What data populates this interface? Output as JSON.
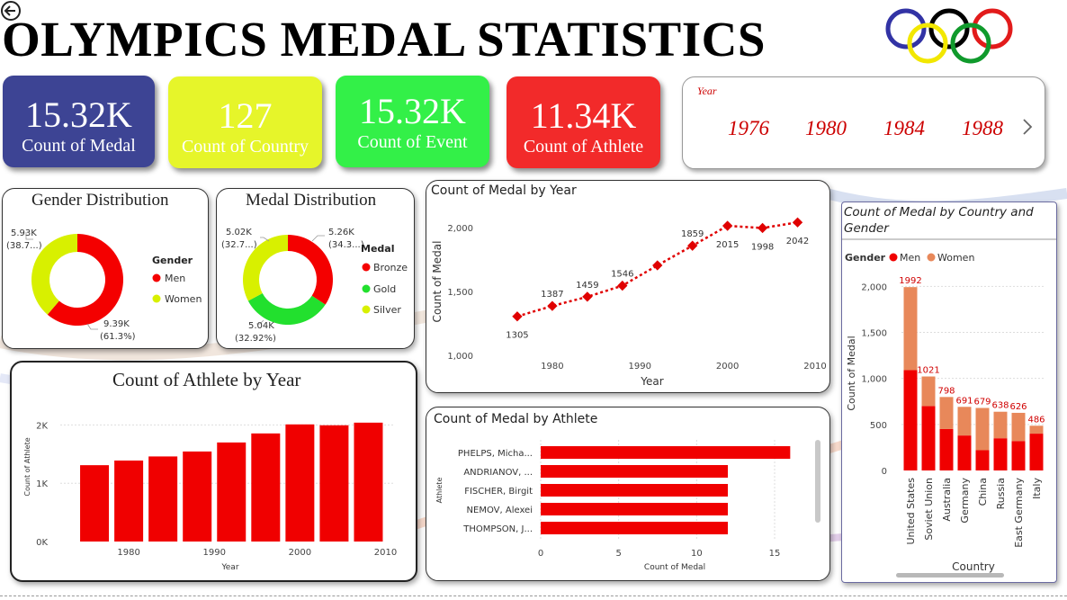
{
  "page": {
    "title": "OLYMPICS MEDAL STATISTICS"
  },
  "kpis": [
    {
      "value": "15.32K",
      "label": "Count of Medal",
      "color": "#3d4494",
      "text_color": "#ffffff"
    },
    {
      "value": "127",
      "label": "Count of Country",
      "color": "#e6f52a",
      "text_color": "#ffffff"
    },
    {
      "value": "15.32K",
      "label": "Count of Event",
      "color": "#33f048",
      "text_color": "#ffffff"
    },
    {
      "value": "11.34K",
      "label": "Count of Athlete",
      "color": "#f22a2a",
      "text_color": "#ffffff"
    }
  ],
  "year_slicer": {
    "header": "Year",
    "years": [
      "1976",
      "1980",
      "1984",
      "1988"
    ],
    "next_icon": "chevron-right-icon"
  },
  "gender_distribution": {
    "title": "Gender Distribution",
    "legend_title": "Gender",
    "slices": [
      {
        "name": "Men",
        "value": 9390,
        "label": "9.39K",
        "pct": "(61.3%)",
        "color": "#f40000"
      },
      {
        "name": "Women",
        "value": 5930,
        "label": "5.93K",
        "pct": "(38.7...)",
        "color": "#d8f000"
      }
    ]
  },
  "medal_distribution": {
    "title": "Medal Distribution",
    "legend_title": "Medal",
    "slices": [
      {
        "name": "Bronze",
        "value": 5260,
        "label": "5.26K",
        "pct": "(34.3...)",
        "color": "#f40000"
      },
      {
        "name": "Gold",
        "value": 5040,
        "label": "5.04K",
        "pct": "(32.92%)",
        "color": "#22e02e"
      },
      {
        "name": "Silver",
        "value": 5020,
        "label": "5.02K",
        "pct": "(32.7...)",
        "color": "#d8f000"
      }
    ]
  },
  "chart_data": [
    {
      "type": "line",
      "title": "Count of Medal by Year",
      "xlabel": "Year",
      "ylabel": "Count of Medal",
      "x": [
        1976,
        1980,
        1984,
        1988,
        1992,
        1996,
        2000,
        2004,
        2008
      ],
      "y": [
        1305,
        1387,
        1459,
        1546,
        1705,
        1859,
        2015,
        1998,
        2042
      ],
      "point_labels": [
        "1305",
        "1387",
        "1459",
        "1546",
        "",
        "1859",
        "2015",
        "1998",
        "2042"
      ],
      "xlim": [
        1972,
        2010
      ],
      "ylim": [
        1000,
        2100
      ],
      "xticks": [
        "1980",
        "1990",
        "2000",
        "2010"
      ],
      "yticks": [
        "1,000",
        "1,500",
        "2,000"
      ],
      "color": "#e00000",
      "grid": false
    },
    {
      "type": "bar",
      "title": "Count of Athlete by Year",
      "xlabel": "Year",
      "ylabel": "Count of Athlete",
      "x": [
        1976,
        1980,
        1984,
        1988,
        1992,
        1996,
        2000,
        2004,
        2008
      ],
      "values": [
        1310,
        1390,
        1460,
        1545,
        1700,
        1855,
        2010,
        1995,
        2040
      ],
      "xlim": [
        1972,
        2011
      ],
      "ylim": [
        0,
        2300
      ],
      "xticks": [
        "1980",
        "1990",
        "2000",
        "2010"
      ],
      "yticks": [
        "0K",
        "1K",
        "2K"
      ],
      "color": "#f00000",
      "grid": true
    },
    {
      "type": "bar",
      "orientation": "horizontal",
      "title": "Count of Medal by Athlete",
      "xlabel": "Count of Medal",
      "ylabel": "Athlete",
      "categories": [
        "PHELPS, Micha...",
        "ANDRIANOV, ...",
        "FISCHER, Birgit",
        "NEMOV, Alexei",
        "THOMPSON, J..."
      ],
      "values": [
        16,
        12,
        12,
        12,
        12
      ],
      "xlim": [
        0,
        16.5
      ],
      "xticks": [
        "0",
        "5",
        "10",
        "15"
      ],
      "color": "#f00000",
      "grid": true
    },
    {
      "type": "bar",
      "stacked": true,
      "title": "Count of Medal by Country and Gender",
      "xlabel": "Country",
      "ylabel": "Count of Medal",
      "legend_title": "Gender",
      "categories": [
        "United States",
        "Soviet Union",
        "Australia",
        "Germany",
        "China",
        "Russia",
        "East Germany",
        "Italy"
      ],
      "series": [
        {
          "name": "Men",
          "values": [
            1090,
            700,
            450,
            380,
            220,
            350,
            320,
            400
          ],
          "color": "#f00000"
        },
        {
          "name": "Women",
          "values": [
            902,
            321,
            348,
            311,
            459,
            288,
            306,
            86
          ],
          "color": "#e8885a"
        }
      ],
      "totals": [
        1992,
        1021,
        798,
        691,
        679,
        638,
        626,
        486
      ],
      "ylim": [
        0,
        2150
      ],
      "yticks": [
        "0",
        "500",
        "1,000",
        "1,500",
        "2,000"
      ],
      "grid": true
    }
  ]
}
